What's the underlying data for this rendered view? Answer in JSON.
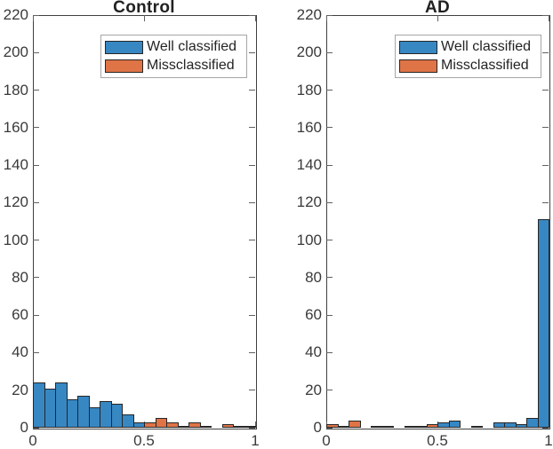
{
  "figure": {
    "colors": {
      "well_classified": "#3787c3",
      "missclassified": "#df7447",
      "bar_edge": "#262626",
      "axis_box": "#3f3f3f",
      "tick_mark": "#606060",
      "tick_label": "#3a3a3a",
      "title": "#212121",
      "legend_border": "#a6a6a6",
      "background": "#ffffff"
    },
    "legend": {
      "items": [
        {
          "label": "Well classified",
          "color_key": "well_classified"
        },
        {
          "label": "Missclassified",
          "color_key": "missclassified"
        }
      ]
    }
  },
  "chart_data": [
    {
      "type": "bar",
      "title": "Control",
      "xlabel": "",
      "ylabel": "",
      "xlim": [
        0,
        1
      ],
      "ylim": [
        0,
        220
      ],
      "bin_width": 0.05,
      "ytick_values": [
        0,
        20,
        40,
        60,
        80,
        100,
        120,
        140,
        160,
        180,
        200,
        220
      ],
      "xticks": [
        0,
        0.5,
        1
      ],
      "xtick_labels": [
        "0",
        "0.5",
        "1"
      ],
      "grid": false,
      "legend_position": "top-center",
      "series": [
        {
          "name": "Well classified",
          "color_key": "well_classified",
          "bin_start": 0.0,
          "values": [
            24,
            21,
            24,
            15,
            17,
            11,
            14,
            13,
            7,
            3
          ]
        },
        {
          "name": "Missclassified",
          "color_key": "missclassified",
          "bin_start": 0.5,
          "values": [
            3,
            5,
            3,
            1,
            3,
            1,
            0,
            2,
            1,
            1
          ]
        }
      ]
    },
    {
      "type": "bar",
      "title": "AD",
      "xlabel": "",
      "ylabel": "",
      "xlim": [
        0,
        1
      ],
      "ylim": [
        0,
        220
      ],
      "bin_width": 0.05,
      "ytick_values": [
        0,
        20,
        40,
        60,
        80,
        100,
        120,
        140,
        160,
        180,
        200,
        220
      ],
      "xticks": [
        0,
        0.5,
        1
      ],
      "xtick_labels": [
        "0",
        "0.5",
        "1"
      ],
      "grid": false,
      "legend_position": "top-center",
      "series": [
        {
          "name": "Missclassified",
          "color_key": "missclassified",
          "bin_start": 0.0,
          "values": [
            2,
            1,
            4,
            0,
            1,
            1,
            0,
            1,
            1,
            2
          ]
        },
        {
          "name": "Well classified",
          "color_key": "well_classified",
          "bin_start": 0.5,
          "values": [
            3,
            4,
            0,
            1,
            0,
            3,
            3,
            2,
            5,
            111
          ]
        }
      ]
    }
  ]
}
